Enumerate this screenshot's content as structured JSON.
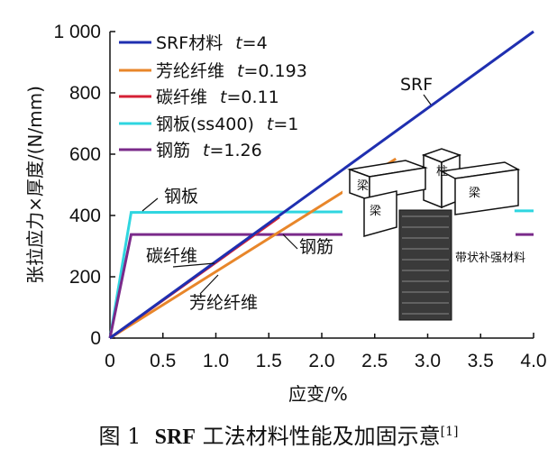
{
  "chart_data": {
    "type": "line",
    "xlabel": "应变/%",
    "ylabel": "张拉应力×厚度/(N/mm)",
    "xlim": [
      0,
      4.0
    ],
    "ylim": [
      0,
      1000
    ],
    "xticks": [
      "0",
      "0.5",
      "1.0",
      "1.5",
      "2.0",
      "2.5",
      "3.0",
      "3.5",
      "4.0"
    ],
    "yticks": [
      "0",
      "200",
      "400",
      "600",
      "800",
      "1 000"
    ],
    "legend_position": "top-left",
    "series": [
      {
        "name": "SRF材料",
        "t_label": "t",
        "t_value": "=4",
        "color": "#1f2fb0",
        "x": [
          0,
          4.0
        ],
        "y": [
          0,
          1000
        ]
      },
      {
        "name": "芳纶纤维",
        "t_label": "t",
        "t_value": "=0.193",
        "color": "#e8862a",
        "x": [
          0,
          2.7
        ],
        "y": [
          0,
          585
        ]
      },
      {
        "name": "碳纤维",
        "t_label": "t",
        "t_value": "=0.11",
        "color": "#d62035",
        "x": [
          0,
          1.6
        ],
        "y": [
          0,
          395
        ]
      },
      {
        "name": "钢板(ss400)",
        "t_label": "t",
        "t_value": "=1",
        "color": "#2fd6e0",
        "x": [
          0,
          0.2,
          2.3,
          3.82,
          4.0
        ],
        "y": [
          0,
          410,
          412,
          415,
          415
        ]
      },
      {
        "name": "钢筋",
        "t_label": "t",
        "t_value": "=1.26",
        "color": "#7a2a8a",
        "x": [
          0,
          0.2,
          2.26,
          3.83,
          4.0
        ],
        "y": [
          0,
          338,
          338,
          338,
          338
        ]
      }
    ],
    "annotations": [
      "SRF",
      "钢板",
      "碳纤维",
      "钢筋",
      "芳纶纤维"
    ]
  },
  "inset": {
    "column_label": "柱",
    "beam_label_left": "梁",
    "beam_label_left2": "梁",
    "beam_label_right": "梁",
    "strip_label": "带状补强材料"
  },
  "caption": {
    "prefix": "图 1",
    "bold": "SRF",
    "text": " 工法材料性能及加固示意",
    "ref": "[1]"
  }
}
